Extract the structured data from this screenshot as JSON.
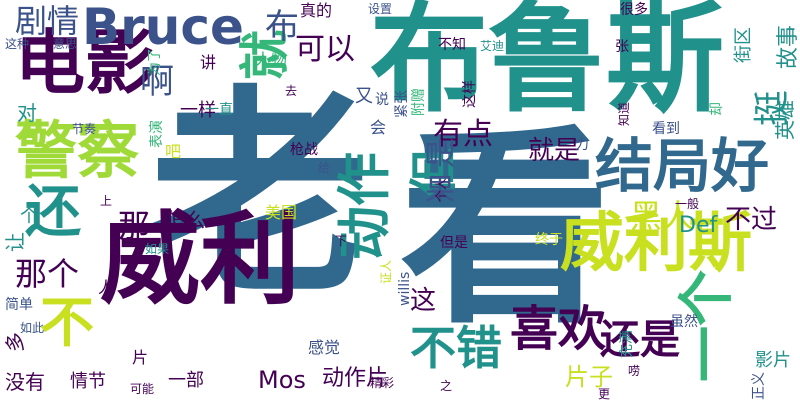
{
  "palette": {
    "dark_purple": "#440154",
    "indigo": "#3b528b",
    "steel_blue": "#31688e",
    "teal": "#21918c",
    "green": "#35b779",
    "lime": "#5ec962",
    "yellow": "#c8e020"
  },
  "words": [
    {
      "text": "老",
      "color": "#31688e"
    },
    {
      "text": "看",
      "color": "#31688e"
    },
    {
      "text": "布鲁斯",
      "color": "#21918c"
    },
    {
      "text": "威利",
      "color": "#440154"
    },
    {
      "text": "电影",
      "color": "#440154"
    },
    {
      "text": "威利斯",
      "color": "#c8e020"
    },
    {
      "text": "警察",
      "color": "#a0da39"
    },
    {
      "text": "结局好",
      "color": "#31688e"
    },
    {
      "text": "动作",
      "color": "#21918c"
    },
    {
      "text": "一个",
      "color": "#35b779"
    },
    {
      "text": "还",
      "color": "#21918c"
    },
    {
      "text": "但",
      "color": "#21918c"
    },
    {
      "text": "不",
      "color": "#c8e020"
    },
    {
      "text": "Bruce",
      "color": "#3b528b"
    },
    {
      "text": "喜欢",
      "color": "#440154"
    },
    {
      "text": "不错",
      "color": "#21918c"
    },
    {
      "text": "就",
      "color": "#35b779"
    },
    {
      "text": "还是",
      "color": "#440154"
    },
    {
      "text": "剧情",
      "color": "#3b528b"
    },
    {
      "text": "黑人",
      "color": "#c8e020"
    },
    {
      "text": "可以",
      "color": "#440154"
    },
    {
      "text": "挺",
      "color": "#21918c"
    },
    {
      "text": "有点",
      "color": "#440154"
    },
    {
      "text": "那个",
      "color": "#440154"
    },
    {
      "text": "啊",
      "color": "#3b528b"
    },
    {
      "text": "布",
      "color": "#3b528b"
    },
    {
      "text": "就是",
      "color": "#440154"
    },
    {
      "text": "故事",
      "color": "#21918c"
    },
    {
      "text": "不过",
      "color": "#440154"
    },
    {
      "text": "那",
      "color": "#440154"
    },
    {
      "text": "片子",
      "color": "#c8e020"
    },
    {
      "text": "Mos",
      "color": "#440154"
    },
    {
      "text": "动作片",
      "color": "#440154"
    },
    {
      "text": "这",
      "color": "#440154"
    },
    {
      "text": "果",
      "color": "#3b528b"
    },
    {
      "text": "是",
      "color": "#3b528b"
    },
    {
      "text": "Def",
      "color": "#21918c"
    },
    {
      "text": "怎么",
      "color": "#440154"
    },
    {
      "text": "一样",
      "color": "#440154"
    },
    {
      "text": "英雄",
      "color": "#21918c"
    },
    {
      "text": "街区",
      "color": "#21918c"
    },
    {
      "text": "影片",
      "color": "#21918c"
    },
    {
      "text": "没有",
      "color": "#440154"
    },
    {
      "text": "情节",
      "color": "#440154"
    },
    {
      "text": "一部",
      "color": "#440154"
    },
    {
      "text": "真的",
      "color": "#440154"
    },
    {
      "text": "人物",
      "color": "#35b779"
    },
    {
      "text": "感觉",
      "color": "#3b528b"
    },
    {
      "text": "美国",
      "color": "#c8e020"
    },
    {
      "text": "对",
      "color": "#21918c"
    },
    {
      "text": "又",
      "color": "#3b528b"
    },
    {
      "text": "让",
      "color": "#21918c"
    },
    {
      "text": "个",
      "color": "#21918c"
    },
    {
      "text": "人",
      "color": "#440154"
    },
    {
      "text": "片",
      "color": "#440154"
    },
    {
      "text": "会",
      "color": "#3b528b"
    },
    {
      "text": "说",
      "color": "#3b528b"
    },
    {
      "text": "紧张",
      "color": "#3b528b"
    },
    {
      "text": "附赠",
      "color": "#35b779"
    },
    {
      "text": "这样",
      "color": "#440154"
    },
    {
      "text": "知道",
      "color": "#440154"
    },
    {
      "text": "看到",
      "color": "#3b528b"
    },
    {
      "text": "却",
      "color": "#35b779"
    },
    {
      "text": "很多",
      "color": "#440154"
    },
    {
      "text": "不知",
      "color": "#440154"
    },
    {
      "text": "艾迪",
      "color": "#21918c"
    },
    {
      "text": "张",
      "color": "#440154"
    },
    {
      "text": "力",
      "color": "#3b528b"
    },
    {
      "text": "设置",
      "color": "#3b528b"
    },
    {
      "text": "这种",
      "color": "#3b528b"
    },
    {
      "text": "意思",
      "color": "#3b528b"
    },
    {
      "text": "讲",
      "color": "#440154"
    },
    {
      "text": "为了",
      "color": "#35b779"
    },
    {
      "text": "去",
      "color": "#440154"
    },
    {
      "text": "节奏",
      "color": "#3b528b"
    },
    {
      "text": "一直",
      "color": "#21918c"
    },
    {
      "text": "表演",
      "color": "#35b779"
    },
    {
      "text": "吧",
      "color": "#c8e020"
    },
    {
      "text": "枪战",
      "color": "#440154"
    },
    {
      "text": "给",
      "color": "#3b528b"
    },
    {
      "text": "司",
      "color": "#3b528b"
    },
    {
      "text": "个人",
      "color": "#440154"
    },
    {
      "text": "上",
      "color": "#440154"
    },
    {
      "text": "一般",
      "color": "#440154"
    },
    {
      "text": "如果",
      "color": "#21918c"
    },
    {
      "text": "下",
      "color": "#440154"
    },
    {
      "text": "willis",
      "color": "#3b528b"
    },
    {
      "text": "证人",
      "color": "#c8e020"
    },
    {
      "text": "终于",
      "color": "#c8e020"
    },
    {
      "text": "但是",
      "color": "#440154"
    },
    {
      "text": "简单",
      "color": "#3b528b"
    },
    {
      "text": "如此",
      "color": "#3b528b"
    },
    {
      "text": "多",
      "color": "#440154"
    },
    {
      "text": "充满",
      "color": "#21918c"
    },
    {
      "text": "虽然",
      "color": "#3b528b"
    },
    {
      "text": "正义",
      "color": "#3b528b"
    },
    {
      "text": "精彩",
      "color": "#440154"
    },
    {
      "text": "之",
      "color": "#440154"
    },
    {
      "text": "唠",
      "color": "#440154"
    },
    {
      "text": "可能",
      "color": "#440154"
    },
    {
      "text": "更",
      "color": "#440154"
    }
  ]
}
